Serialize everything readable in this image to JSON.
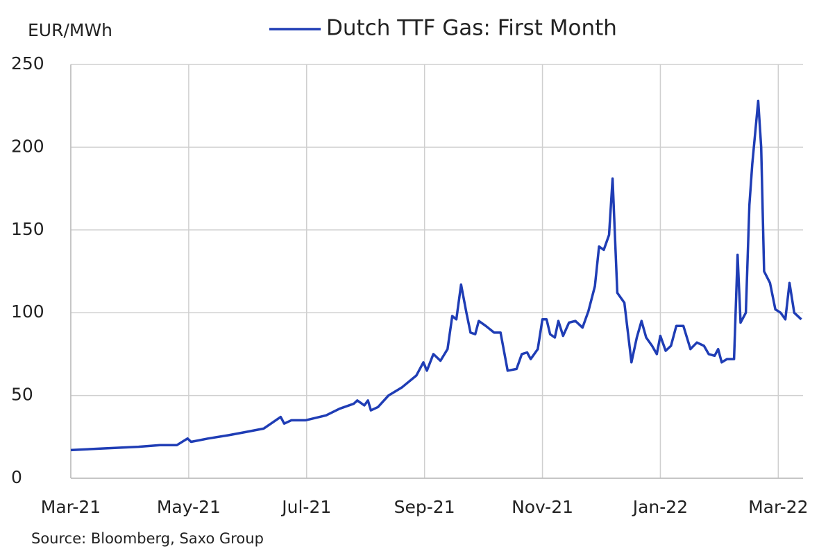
{
  "chart_data": {
    "type": "line",
    "y_label": "EUR/MWh",
    "source": "Source: Bloomberg, Saxo Group",
    "x": [
      0,
      0.56,
      1.15,
      1.51,
      1.8,
      1.98,
      2.04,
      2.33,
      2.68,
      2.98,
      3.27,
      3.56,
      3.62,
      3.74,
      3.98,
      4.33,
      4.56,
      4.8,
      4.86,
      4.98,
      5.04,
      5.09,
      5.21,
      5.39,
      5.62,
      5.86,
      5.98,
      6.04,
      6.15,
      6.27,
      6.39,
      6.47,
      6.54,
      6.62,
      6.71,
      6.78,
      6.86,
      6.92,
      7.04,
      7.18,
      7.29,
      7.41,
      7.56,
      7.65,
      7.74,
      7.8,
      7.92,
      8.0,
      8.07,
      8.13,
      8.21,
      8.27,
      8.35,
      8.45,
      8.56,
      8.68,
      8.78,
      8.89,
      8.96,
      9.04,
      9.13,
      9.19,
      9.27,
      9.39,
      9.51,
      9.6,
      9.68,
      9.76,
      9.86,
      9.94,
      10.0,
      10.09,
      10.18,
      10.27,
      10.39,
      10.51,
      10.62,
      10.74,
      10.82,
      10.92,
      10.98,
      11.04,
      11.13,
      11.25,
      11.31,
      11.36,
      11.45,
      11.51,
      11.56,
      11.66,
      11.71,
      11.76,
      11.86,
      11.95,
      12.04,
      12.12,
      12.19,
      12.27,
      12.39
    ],
    "series": [
      {
        "name": "Dutch TTF Gas: First Month",
        "color": "#1f3db5",
        "values": [
          17,
          18,
          19,
          20,
          20,
          24,
          22,
          24,
          26,
          28,
          30,
          37,
          33,
          35,
          35,
          38,
          42,
          45,
          47,
          44,
          47,
          41,
          43,
          50,
          55,
          62,
          70,
          65,
          75,
          71,
          78,
          98,
          96,
          117,
          100,
          88,
          87,
          95,
          92,
          88,
          88,
          65,
          66,
          75,
          76,
          72,
          78,
          96,
          96,
          87,
          85,
          95,
          86,
          94,
          95,
          91,
          101,
          116,
          140,
          138,
          147,
          181,
          112,
          106,
          70,
          85,
          95,
          85,
          80,
          75,
          86,
          77,
          80,
          92,
          92,
          78,
          82,
          80,
          75,
          74,
          78,
          70,
          72,
          72,
          135,
          94,
          100,
          165,
          190,
          228,
          200,
          125,
          118,
          102,
          100,
          96,
          118,
          100,
          96
        ]
      }
    ],
    "xlim": [
      0,
      12.42
    ],
    "xticks": [
      {
        "value": 0,
        "label": "Mar-21"
      },
      {
        "value": 2,
        "label": "May-21"
      },
      {
        "value": 4,
        "label": "Jul-21"
      },
      {
        "value": 6,
        "label": "Sep-21"
      },
      {
        "value": 8,
        "label": "Nov-21"
      },
      {
        "value": 10,
        "label": "Jan-22"
      },
      {
        "value": 12,
        "label": "Mar-22"
      }
    ],
    "ylim": [
      0,
      250
    ],
    "yticks": [
      0,
      50,
      100,
      150,
      200,
      250
    ],
    "grid": true
  }
}
